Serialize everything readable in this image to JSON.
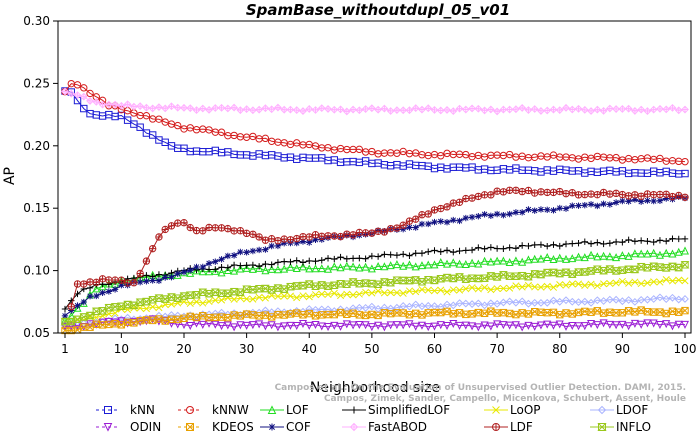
{
  "chart_data": {
    "type": "line",
    "title": "SpamBase_withoutdupl_05_v01",
    "xlabel": "Neighborhood size",
    "ylabel": "AP",
    "xlim": [
      1,
      100
    ],
    "ylim": [
      0.05,
      0.3
    ],
    "xticks": [
      1,
      10,
      20,
      30,
      40,
      50,
      60,
      70,
      80,
      90,
      100
    ],
    "yticks": [
      "0.05",
      "0.10",
      "0.15",
      "0.20",
      "0.25",
      "0.30"
    ],
    "grid": false,
    "legend_position": "bottom",
    "watermark": {
      "line1": "Campos et al.: On the Evaluation of Unsupervised Outlier Detection. DAMI, 2015.",
      "line2": "Campos, Zimek, Sander, Campello, Micenkova, Schubert, Assent, Houle"
    },
    "series": [
      {
        "name": "kNN",
        "color": "#1c1cd4",
        "marker": "square",
        "x_range": [
          1,
          100
        ],
        "anchors": [
          [
            1,
            0.243
          ],
          [
            2,
            0.243
          ],
          [
            3,
            0.235
          ],
          [
            5,
            0.226
          ],
          [
            10,
            0.223
          ],
          [
            13,
            0.215
          ],
          [
            16,
            0.205
          ],
          [
            18,
            0.199
          ],
          [
            22,
            0.196
          ],
          [
            25,
            0.195
          ],
          [
            30,
            0.193
          ],
          [
            40,
            0.19
          ],
          [
            50,
            0.186
          ],
          [
            60,
            0.183
          ],
          [
            70,
            0.181
          ],
          [
            80,
            0.18
          ],
          [
            90,
            0.179
          ],
          [
            100,
            0.178
          ]
        ]
      },
      {
        "name": "kNNW",
        "color": "#d41c1c",
        "marker": "circle",
        "x_range": [
          1,
          100
        ],
        "anchors": [
          [
            1,
            0.243
          ],
          [
            2,
            0.249
          ],
          [
            3,
            0.25
          ],
          [
            5,
            0.243
          ],
          [
            8,
            0.232
          ],
          [
            12,
            0.227
          ],
          [
            16,
            0.22
          ],
          [
            20,
            0.215
          ],
          [
            25,
            0.211
          ],
          [
            30,
            0.207
          ],
          [
            40,
            0.2
          ],
          [
            50,
            0.195
          ],
          [
            60,
            0.193
          ],
          [
            70,
            0.192
          ],
          [
            80,
            0.191
          ],
          [
            90,
            0.19
          ],
          [
            100,
            0.188
          ]
        ]
      },
      {
        "name": "LOF",
        "color": "#22dd22",
        "marker": "triangle-up",
        "x_range": [
          1,
          100
        ],
        "anchors": [
          [
            1,
            0.06
          ],
          [
            3,
            0.07
          ],
          [
            6,
            0.085
          ],
          [
            10,
            0.092
          ],
          [
            20,
            0.098
          ],
          [
            30,
            0.101
          ],
          [
            40,
            0.102
          ],
          [
            50,
            0.103
          ],
          [
            60,
            0.105
          ],
          [
            70,
            0.107
          ],
          [
            80,
            0.11
          ],
          [
            90,
            0.112
          ],
          [
            100,
            0.115
          ]
        ]
      },
      {
        "name": "SimplifiedLOF",
        "color": "#000000",
        "marker": "plus",
        "x_range": [
          1,
          100
        ],
        "anchors": [
          [
            1,
            0.07
          ],
          [
            3,
            0.082
          ],
          [
            6,
            0.088
          ],
          [
            10,
            0.092
          ],
          [
            20,
            0.1
          ],
          [
            30,
            0.104
          ],
          [
            40,
            0.108
          ],
          [
            50,
            0.111
          ],
          [
            60,
            0.115
          ],
          [
            70,
            0.118
          ],
          [
            80,
            0.121
          ],
          [
            90,
            0.123
          ],
          [
            100,
            0.125
          ]
        ]
      },
      {
        "name": "LoOP",
        "color": "#e8e800",
        "marker": "x",
        "x_range": [
          1,
          100
        ],
        "anchors": [
          [
            1,
            0.056
          ],
          [
            5,
            0.062
          ],
          [
            10,
            0.068
          ],
          [
            20,
            0.074
          ],
          [
            30,
            0.078
          ],
          [
            40,
            0.08
          ],
          [
            50,
            0.082
          ],
          [
            60,
            0.084
          ],
          [
            70,
            0.086
          ],
          [
            80,
            0.088
          ],
          [
            90,
            0.09
          ],
          [
            100,
            0.092
          ]
        ]
      },
      {
        "name": "LDOF",
        "color": "#aab4ff",
        "marker": "diamond",
        "x_range": [
          1,
          100
        ],
        "anchors": [
          [
            1,
            0.055
          ],
          [
            5,
            0.058
          ],
          [
            10,
            0.061
          ],
          [
            20,
            0.064
          ],
          [
            30,
            0.066
          ],
          [
            40,
            0.068
          ],
          [
            50,
            0.07
          ],
          [
            60,
            0.072
          ],
          [
            70,
            0.074
          ],
          [
            80,
            0.075
          ],
          [
            90,
            0.076
          ],
          [
            100,
            0.078
          ]
        ]
      },
      {
        "name": "ODIN",
        "color": "#9a1cd4",
        "marker": "triangle-down",
        "x_range": [
          1,
          100
        ],
        "anchors": [
          [
            1,
            0.055
          ],
          [
            5,
            0.057
          ],
          [
            10,
            0.059
          ],
          [
            15,
            0.06
          ],
          [
            20,
            0.057
          ],
          [
            30,
            0.056
          ],
          [
            40,
            0.056
          ],
          [
            50,
            0.056
          ],
          [
            60,
            0.056
          ],
          [
            70,
            0.056
          ],
          [
            80,
            0.056
          ],
          [
            90,
            0.057
          ],
          [
            100,
            0.057
          ]
        ]
      },
      {
        "name": "KDEOS",
        "color": "#e8a000",
        "marker": "square-x",
        "x_range": [
          1,
          100
        ],
        "anchors": [
          [
            1,
            0.052
          ],
          [
            5,
            0.055
          ],
          [
            10,
            0.058
          ],
          [
            20,
            0.062
          ],
          [
            30,
            0.064
          ],
          [
            40,
            0.065
          ],
          [
            50,
            0.065
          ],
          [
            60,
            0.066
          ],
          [
            70,
            0.066
          ],
          [
            80,
            0.066
          ],
          [
            90,
            0.067
          ],
          [
            100,
            0.067
          ]
        ]
      },
      {
        "name": "COF",
        "color": "#101080",
        "marker": "star",
        "x_range": [
          1,
          100
        ],
        "anchors": [
          [
            1,
            0.065
          ],
          [
            5,
            0.078
          ],
          [
            10,
            0.088
          ],
          [
            15,
            0.092
          ],
          [
            20,
            0.098
          ],
          [
            25,
            0.108
          ],
          [
            30,
            0.115
          ],
          [
            35,
            0.12
          ],
          [
            40,
            0.124
          ],
          [
            50,
            0.13
          ],
          [
            60,
            0.138
          ],
          [
            65,
            0.142
          ],
          [
            70,
            0.145
          ],
          [
            80,
            0.15
          ],
          [
            90,
            0.155
          ],
          [
            100,
            0.158
          ]
        ]
      },
      {
        "name": "FastABOD",
        "color": "#ffb0ff",
        "marker": "diamond-plus",
        "x_range": [
          1,
          100
        ],
        "anchors": [
          [
            1,
            0.243
          ],
          [
            3,
            0.24
          ],
          [
            6,
            0.235
          ],
          [
            10,
            0.232
          ],
          [
            20,
            0.23
          ],
          [
            40,
            0.229
          ],
          [
            60,
            0.229
          ],
          [
            80,
            0.229
          ],
          [
            100,
            0.229
          ]
        ]
      },
      {
        "name": "LDF",
        "color": "#b02020",
        "marker": "circle-plus",
        "x_range": [
          2,
          100
        ],
        "anchors": [
          [
            2,
            0.07
          ],
          [
            3,
            0.089
          ],
          [
            7,
            0.093
          ],
          [
            12,
            0.09
          ],
          [
            14,
            0.108
          ],
          [
            16,
            0.127
          ],
          [
            18,
            0.136
          ],
          [
            20,
            0.139
          ],
          [
            22,
            0.132
          ],
          [
            25,
            0.134
          ],
          [
            28,
            0.133
          ],
          [
            30,
            0.131
          ],
          [
            33,
            0.124
          ],
          [
            40,
            0.127
          ],
          [
            50,
            0.13
          ],
          [
            55,
            0.136
          ],
          [
            60,
            0.149
          ],
          [
            63,
            0.153
          ],
          [
            67,
            0.16
          ],
          [
            70,
            0.163
          ],
          [
            75,
            0.164
          ],
          [
            80,
            0.162
          ],
          [
            90,
            0.161
          ],
          [
            100,
            0.16
          ]
        ]
      },
      {
        "name": "INFLO",
        "color": "#9ac81c",
        "marker": "hourglass",
        "x_range": [
          1,
          100
        ],
        "anchors": [
          [
            1,
            0.058
          ],
          [
            5,
            0.065
          ],
          [
            10,
            0.072
          ],
          [
            20,
            0.08
          ],
          [
            30,
            0.084
          ],
          [
            40,
            0.088
          ],
          [
            50,
            0.09
          ],
          [
            60,
            0.093
          ],
          [
            70,
            0.095
          ],
          [
            80,
            0.098
          ],
          [
            90,
            0.101
          ],
          [
            100,
            0.104
          ]
        ]
      }
    ]
  }
}
